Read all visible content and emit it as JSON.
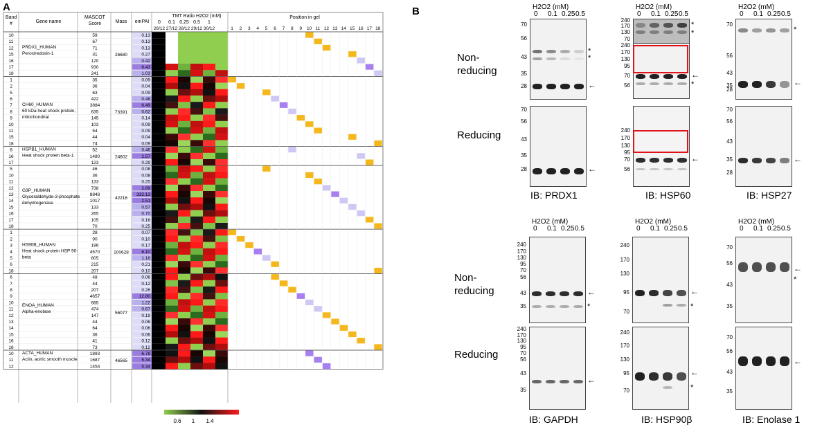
{
  "panel_a_label": "A",
  "panel_b_label": "B",
  "table": {
    "headers": {
      "band": "Band #",
      "gene": "Gene name",
      "mascot": "MASCOT Score",
      "mass": "Mass",
      "empai": "emPAI",
      "tmt": "TMT Ratio H2O2 (mM)",
      "gel": "Position in gel"
    },
    "tmt_conc": [
      "0",
      "0.1",
      "0.25",
      "0.5",
      "1"
    ],
    "tmt_ratio": [
      "26/12",
      "27/12",
      "28/12",
      "29/12",
      "30/12"
    ],
    "gel_positions": [
      "1",
      "2",
      "3",
      "4",
      "5",
      "6",
      "7",
      "8",
      "9",
      "10",
      "11",
      "12",
      "13",
      "14",
      "15",
      "16",
      "17",
      "18"
    ],
    "groups": [
      {
        "names": [
          "PRDX1_HUMAN",
          "Peroxiredoxin-1"
        ],
        "mass": "26680",
        "rows": [
          [
            "10",
            "59",
            "0.13"
          ],
          [
            "11",
            "67",
            "0.13"
          ],
          [
            "12",
            "71",
            "0.13"
          ],
          [
            "15",
            "31",
            "0.27"
          ],
          [
            "16",
            "120",
            "0.42"
          ],
          [
            "17",
            "930",
            "6.43"
          ],
          [
            "18",
            "241",
            "1.03"
          ]
        ]
      },
      {
        "names": [
          "CH60_HUMAN",
          "60 kDa heat shock protein,",
          "mitochondrial"
        ],
        "mass": "73391",
        "rows": [
          [
            "1",
            "35",
            "0.09"
          ],
          [
            "2",
            "36",
            "0.04"
          ],
          [
            "5",
            "63",
            "0.09"
          ],
          [
            "6",
            "422",
            "0.48"
          ],
          [
            "7",
            "3884",
            "6.49"
          ],
          [
            "8",
            "635",
            "0.62"
          ],
          [
            "9",
            "145",
            "0.14"
          ],
          [
            "10",
            "103",
            "0.09"
          ],
          [
            "11",
            "54",
            "0.09"
          ],
          [
            "15",
            "44",
            "0.04"
          ],
          [
            "18",
            "74",
            "0.09"
          ]
        ]
      },
      {
        "names": [
          "HSPB1_HUMAN",
          "Heat shock protein beta-1"
        ],
        "mass": "24602",
        "rows": [
          [
            "8",
            "52",
            "0.46"
          ],
          [
            "16",
            "1480",
            "2.57"
          ],
          [
            "17",
            "123",
            "0.29"
          ]
        ]
      },
      {
        "names": [
          "G3P_HUMAN",
          "Glyceraldehyde-3-phosphate",
          "dehydrogenase"
        ],
        "mass": "42218",
        "rows": [
          [
            "5",
            "46",
            "0.08"
          ],
          [
            "10",
            "36",
            "0.08"
          ],
          [
            "11",
            "133",
            "0.25"
          ],
          [
            "12",
            "738",
            "2.89"
          ],
          [
            "13",
            "8848",
            "332.13"
          ],
          [
            "14",
            "1017",
            "2.51"
          ],
          [
            "15",
            "133",
            "0.57"
          ],
          [
            "16",
            "265",
            "0.70"
          ],
          [
            "17",
            "105",
            "0.16"
          ],
          [
            "18",
            "70",
            "0.25"
          ]
        ]
      },
      {
        "names": [
          "HS90B_HUMAN",
          "Heat shock protein HSP 90-",
          "beta"
        ],
        "mass": "100628",
        "rows": [
          [
            "1",
            "28",
            "0.07"
          ],
          [
            "2",
            "90",
            "0.10"
          ],
          [
            "3",
            "196",
            "0.17"
          ],
          [
            "4",
            "4570",
            "6.10"
          ],
          [
            "5",
            "805",
            "1.16"
          ],
          [
            "6",
            "215",
            "0.21"
          ],
          [
            "18",
            "207",
            "0.10"
          ]
        ]
      },
      {
        "names": [
          "ENOA_HUMAN",
          "Alpha-enolase"
        ],
        "mass": "56077",
        "rows": [
          [
            "6",
            "48",
            "0.06"
          ],
          [
            "7",
            "44",
            "0.12"
          ],
          [
            "8",
            "207",
            "0.26"
          ],
          [
            "9",
            "4657",
            "12.80"
          ],
          [
            "10",
            "665",
            "1.22"
          ],
          [
            "11",
            "474",
            "0.67"
          ],
          [
            "12",
            "147",
            "0.19"
          ],
          [
            "13",
            "44",
            "0.06"
          ],
          [
            "14",
            "64",
            "0.06"
          ],
          [
            "15",
            "36",
            "0.06"
          ],
          [
            "16",
            "41",
            "0.12"
          ],
          [
            "18",
            "73",
            "0.12"
          ]
        ]
      },
      {
        "names": [
          "ACTA_HUMAN",
          "Actin, aortic smooth muscle"
        ],
        "mass": "46565",
        "rows": [
          [
            "10",
            "1893",
            "6.78"
          ],
          [
            "11",
            "1687",
            "5.34"
          ],
          [
            "12",
            "1454",
            "5.34"
          ]
        ]
      }
    ],
    "colorbar_ticks": [
      "0.6",
      "1",
      "1.4"
    ],
    "colors": {
      "empai_low": "#dcdcf8",
      "empai_high": "#9a7de0",
      "gel_yellow": "#f5b81c",
      "gel_purple": "#a77ff0",
      "gel_lavender": "#cfc8f5",
      "heat_green": "#8fce4f",
      "heat_black": "#111111",
      "heat_red": "#ff1a1a"
    }
  },
  "blots": {
    "h2o2_label": "H2O2 (mM)",
    "conc": [
      "0",
      "0.1",
      "0.25",
      "0.5"
    ],
    "row_labels": [
      "Non-",
      "reducing",
      "Reducing"
    ],
    "ib": [
      "IB: PRDX1",
      "IB: HSP60",
      "IB: HSP27",
      "IB: GAPDH",
      "IB: HSP90β",
      "IB: Enolase 1"
    ],
    "mw_prdx1_nr": [
      "70",
      "56",
      "43",
      "35",
      "28"
    ],
    "mw_prdx1_r": [
      "70",
      "56",
      "43",
      "35",
      "28"
    ],
    "mw_hsp60_top": [
      "240",
      "170",
      "130",
      "70"
    ],
    "mw_hsp60_mid": [
      "240",
      "170",
      "130",
      "95",
      "70",
      "56"
    ],
    "mw_hsp60_r": [
      "240",
      "170",
      "130",
      "95",
      "70",
      "56"
    ],
    "mw_hsp27_nr": [
      "70",
      "56",
      "43",
      "35",
      "28"
    ],
    "mw_hsp27_r": [
      "70",
      "56",
      "43",
      "35",
      "28"
    ],
    "mw_gapdh": [
      "240",
      "170",
      "130",
      "95",
      "70",
      "56",
      "43",
      "35"
    ],
    "mw_hsp90_nr": [
      "240",
      "170",
      "130",
      "95",
      "70"
    ],
    "mw_hsp90_r": [
      "240",
      "170",
      "130",
      "95",
      "70"
    ],
    "mw_eno_nr": [
      "70",
      "56",
      "43",
      "35"
    ],
    "mw_eno_r": [
      "70",
      "56",
      "43",
      "35"
    ],
    "arrow": "←",
    "star": "*"
  }
}
